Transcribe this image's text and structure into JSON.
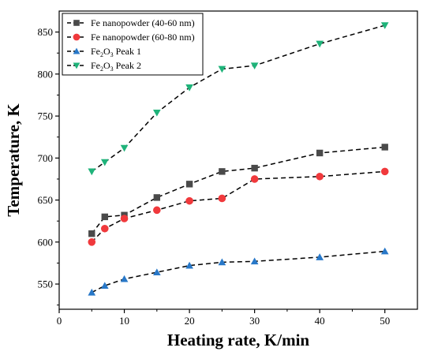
{
  "chart_data": {
    "type": "scatter",
    "xlabel": "Heating rate, K/min",
    "ylabel": "Temperature, K",
    "xlim": [
      0,
      55
    ],
    "ylim": [
      520,
      875
    ],
    "xticks": [
      0,
      10,
      20,
      30,
      40,
      50
    ],
    "yticks": [
      550,
      600,
      650,
      700,
      750,
      800,
      850
    ],
    "grid": false,
    "legend_position": "top-left",
    "line_style": "dashed",
    "series": [
      {
        "name": "Fe nanopowder (40-60 nm)",
        "legend_label": {
          "base": "Fe nanopowder (40-60 nm)"
        },
        "marker": "square",
        "color": "#4a4a4a",
        "x": [
          5,
          7,
          10,
          15,
          20,
          25,
          30,
          40,
          50
        ],
        "y": [
          610,
          630,
          632,
          653,
          669,
          684,
          688,
          706,
          713
        ]
      },
      {
        "name": "Fe nanopowder (60-80 nm)",
        "legend_label": {
          "base": "Fe nanopowder (60-80 nm)"
        },
        "marker": "circle",
        "color": "#f0393c",
        "x": [
          5,
          7,
          10,
          15,
          20,
          25,
          30,
          40,
          50
        ],
        "y": [
          600,
          616,
          628,
          638,
          649,
          652,
          675,
          678,
          684
        ]
      },
      {
        "name": "Fe2O3 Peak 1",
        "legend_label": {
          "a": "Fe",
          "s1": "2",
          "b": "O",
          "s2": "3",
          "c": " Peak 1"
        },
        "marker": "triangle-up",
        "color": "#2878c8",
        "x": [
          5,
          7,
          10,
          15,
          20,
          25,
          30,
          40,
          50
        ],
        "y": [
          540,
          548,
          556,
          564,
          572,
          576,
          577,
          582,
          589
        ]
      },
      {
        "name": "Fe2O3 Peak 2",
        "legend_label": {
          "a": "Fe",
          "s1": "2",
          "b": "O",
          "s2": "3",
          "c": " Peak 2"
        },
        "marker": "triangle-down",
        "color": "#1fb37a",
        "x": [
          5,
          7,
          10,
          15,
          20,
          25,
          30,
          40,
          50
        ],
        "y": [
          684,
          695,
          712,
          754,
          784,
          806,
          810,
          836,
          858
        ]
      }
    ]
  }
}
